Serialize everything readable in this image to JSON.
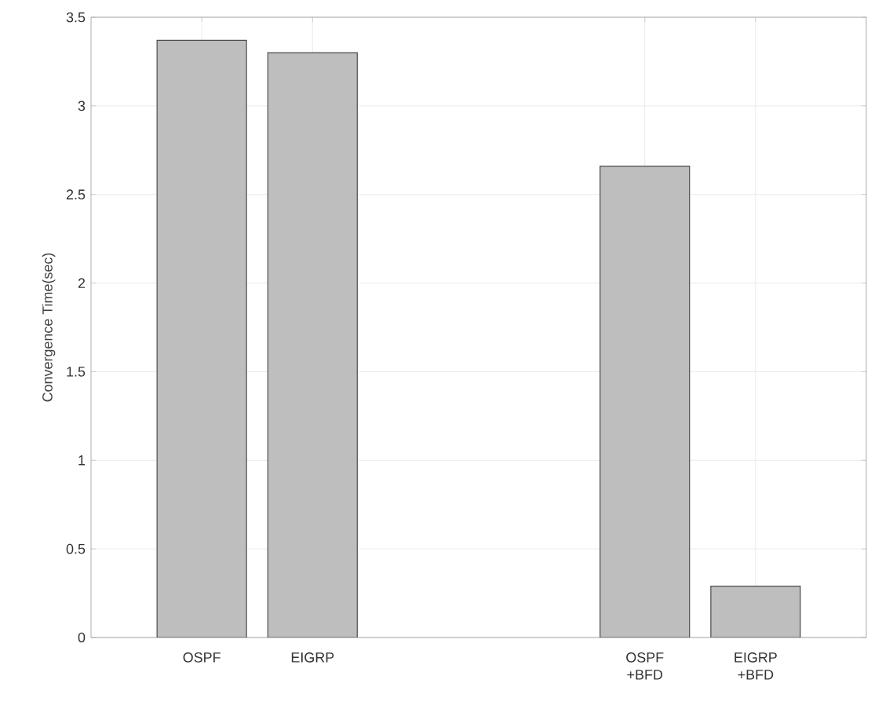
{
  "chart_data": {
    "type": "bar",
    "ylabel": "Convergence Time(sec)",
    "categories": [
      "OSPF",
      "EIGRP",
      null,
      null,
      "OSPF +BFD",
      "EIGRP +BFD"
    ],
    "values": [
      3.37,
      3.3,
      null,
      null,
      2.66,
      0.29
    ],
    "color": "#bebebe",
    "ylim": [
      0,
      3.5
    ],
    "yticks": [
      0,
      0.5,
      1,
      1.5,
      2,
      2.5,
      3,
      3.5
    ],
    "grid": true
  }
}
